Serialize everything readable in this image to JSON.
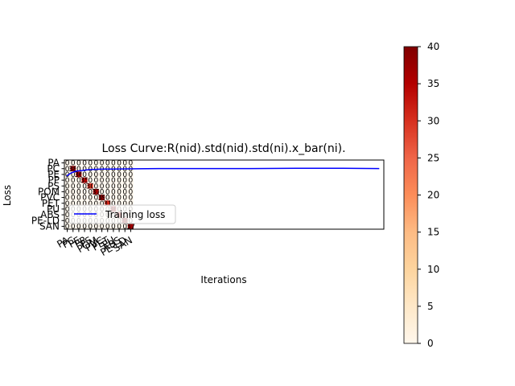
{
  "chart_data": [
    {
      "type": "line",
      "title": "Loss Curve:R(nid).std(nid).std(ni).x_bar(ni).",
      "xlabel": "Iterations",
      "ylabel": "Loss",
      "xlim": [
        -0.5,
        69
      ],
      "ylim": [
        12.5,
        -0.5
      ],
      "legend": {
        "position": "lower-left"
      },
      "series": [
        {
          "name": "Training loss",
          "color": "#0000ff",
          "x": [
            0,
            1,
            2,
            3,
            5,
            8,
            10,
            15,
            20,
            30,
            40,
            50,
            60,
            68
          ],
          "y": [
            2.5,
            1.9,
            1.6,
            1.5,
            1.3,
            1.2,
            1.2,
            1.15,
            1.1,
            1.1,
            1.1,
            1.05,
            1.05,
            1.1
          ]
        }
      ]
    },
    {
      "type": "heatmap",
      "colormap": "OrRd",
      "rows": [
        "PA",
        "PC",
        "PE",
        "PP",
        "PS",
        "POM",
        "PVC",
        "PET",
        "PU",
        "ABS",
        "PE-LD",
        "SAN"
      ],
      "cols": [
        "PA",
        "PC",
        "PE",
        "PP",
        "PS",
        "POM",
        "PVC",
        "PET",
        "PU",
        "ABS",
        "PE-LD",
        "SAN"
      ],
      "values": [
        [
          0,
          0,
          0,
          0,
          0,
          0,
          0,
          0,
          0,
          0,
          0,
          0
        ],
        [
          0,
          38,
          0,
          0,
          0,
          0,
          0,
          0,
          0,
          0,
          0,
          0
        ],
        [
          0,
          0,
          36,
          0,
          0,
          0,
          0,
          0,
          0,
          0,
          0,
          0
        ],
        [
          0,
          0,
          0,
          35,
          0,
          0,
          0,
          0,
          0,
          0,
          0,
          0
        ],
        [
          0,
          0,
          0,
          0,
          30,
          0,
          0,
          0,
          0,
          0,
          0,
          0
        ],
        [
          0,
          0,
          0,
          0,
          0,
          37,
          0,
          0,
          0,
          0,
          0,
          0
        ],
        [
          0,
          0,
          0,
          0,
          0,
          0,
          39,
          0,
          0,
          0,
          0,
          0
        ],
        [
          0,
          0,
          0,
          0,
          0,
          0,
          0,
          31,
          0,
          0,
          0,
          0
        ],
        [
          0,
          0,
          0,
          0,
          0,
          0,
          0,
          0,
          36,
          0,
          0,
          0
        ],
        [
          0,
          0,
          0,
          0,
          0,
          0,
          0,
          0,
          0,
          33,
          0,
          0
        ],
        [
          0,
          0,
          0,
          0,
          0,
          0,
          0,
          0,
          0,
          0,
          38,
          0
        ],
        [
          0,
          0,
          0,
          0,
          0,
          0,
          0,
          0,
          0,
          0,
          0,
          37
        ]
      ],
      "colorbar": {
        "min": 0,
        "max": 40,
        "ticks": [
          0,
          5,
          10,
          15,
          20,
          25,
          30,
          35,
          40
        ]
      }
    }
  ]
}
